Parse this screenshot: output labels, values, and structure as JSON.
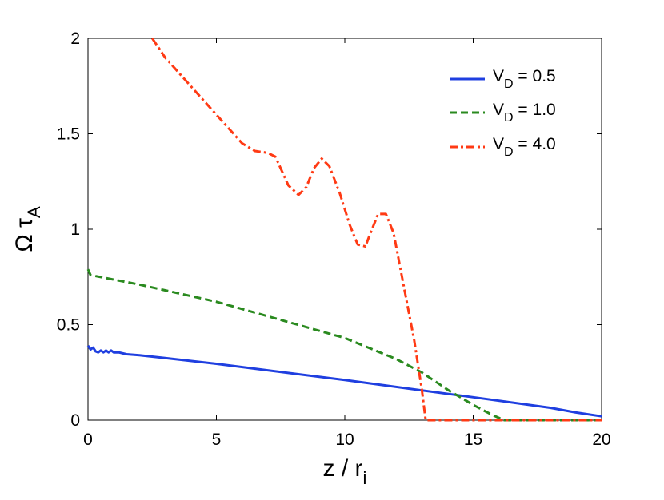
{
  "chart_data": {
    "type": "line",
    "xlim": [
      0,
      20
    ],
    "ylim": [
      0,
      2
    ],
    "x_ticks": [
      "0",
      "5",
      "10",
      "15",
      "20"
    ],
    "y_ticks": [
      "0",
      "0.5",
      "1",
      "1.5",
      "2"
    ],
    "xlabel": {
      "main": "z / r",
      "sub": "i"
    },
    "ylabel": {
      "main": "Ω τ",
      "sub": "A"
    },
    "grid": false,
    "legend_position": "top-right",
    "series": [
      {
        "legend": {
          "v": "V",
          "sub": "D",
          "rest": " = 0.5"
        },
        "color": "#1f3fe0",
        "style": "solid",
        "points": [
          [
            0,
            0.39
          ],
          [
            0.1,
            0.37
          ],
          [
            0.2,
            0.38
          ],
          [
            0.3,
            0.36
          ],
          [
            0.4,
            0.355
          ],
          [
            0.5,
            0.365
          ],
          [
            0.6,
            0.355
          ],
          [
            0.7,
            0.365
          ],
          [
            0.8,
            0.355
          ],
          [
            0.9,
            0.365
          ],
          [
            1.0,
            0.355
          ],
          [
            1.2,
            0.355
          ],
          [
            1.5,
            0.345
          ],
          [
            2,
            0.34
          ],
          [
            3,
            0.325
          ],
          [
            5,
            0.295
          ],
          [
            10,
            0.21
          ],
          [
            15,
            0.12
          ],
          [
            18,
            0.065
          ],
          [
            19,
            0.04
          ],
          [
            20,
            0.02
          ]
        ]
      },
      {
        "legend": {
          "v": "V",
          "sub": "D",
          "rest": " = 1.0"
        },
        "color": "#2a8a1f",
        "style": "dashed",
        "points": [
          [
            0,
            0.79
          ],
          [
            0.1,
            0.76
          ],
          [
            2,
            0.71
          ],
          [
            5,
            0.62
          ],
          [
            10,
            0.43
          ],
          [
            12,
            0.32
          ],
          [
            13,
            0.25
          ],
          [
            14,
            0.16
          ],
          [
            15,
            0.08
          ],
          [
            15.7,
            0.03
          ],
          [
            16.2,
            0
          ],
          [
            20,
            0
          ]
        ]
      },
      {
        "legend": {
          "v": "V",
          "sub": "D",
          "rest": " = 4.0"
        },
        "color": "#ff3a14",
        "style": "dashdot",
        "points": [
          [
            2.5,
            2.0
          ],
          [
            3,
            1.9
          ],
          [
            4,
            1.75
          ],
          [
            5,
            1.6
          ],
          [
            6,
            1.45
          ],
          [
            6.5,
            1.41
          ],
          [
            7,
            1.4
          ],
          [
            7.3,
            1.38
          ],
          [
            7.8,
            1.23
          ],
          [
            8.2,
            1.18
          ],
          [
            8.5,
            1.22
          ],
          [
            8.8,
            1.32
          ],
          [
            9.1,
            1.37
          ],
          [
            9.4,
            1.33
          ],
          [
            9.8,
            1.19
          ],
          [
            10.2,
            1.02
          ],
          [
            10.5,
            0.92
          ],
          [
            10.8,
            0.91
          ],
          [
            11,
            0.98
          ],
          [
            11.3,
            1.08
          ],
          [
            11.6,
            1.08
          ],
          [
            11.9,
            0.98
          ],
          [
            12.3,
            0.7
          ],
          [
            12.7,
            0.42
          ],
          [
            13.0,
            0.16
          ],
          [
            13.15,
            0
          ],
          [
            14,
            0
          ],
          [
            20,
            0
          ]
        ]
      }
    ]
  }
}
